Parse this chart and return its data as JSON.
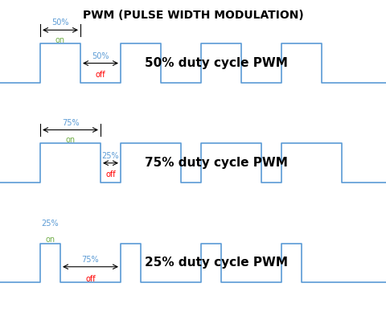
{
  "title": "PWM (PULSE WIDTH MODULATION)",
  "title_fontsize": 10,
  "title_fontweight": "bold",
  "bg_color": "#ffffff",
  "signal_color": "#5b9bd5",
  "text_color_on": "#70ad47",
  "text_color_off": "#ff0000",
  "text_color_pct": "#5b9bd5",
  "label_fontsize": 11,
  "label_fontweight": "bold",
  "subplots": [
    {
      "duty": 0.5,
      "label": "50% duty cycle PWM",
      "on_label": "50%",
      "off_label": "50%",
      "on_text": "on",
      "off_text": "off",
      "on_arrow_above": true,
      "off_arrow_mid": true
    },
    {
      "duty": 0.75,
      "label": "75% duty cycle PWM",
      "on_label": "75%",
      "off_label": "25%",
      "on_text": "on",
      "off_text": "off",
      "on_arrow_above": true,
      "off_arrow_mid": true
    },
    {
      "duty": 0.25,
      "label": "25% duty cycle PWM",
      "on_label": "25%",
      "off_label": "75%",
      "on_text": "on",
      "off_text": "off",
      "on_arrow_above": true,
      "off_arrow_mid": true
    }
  ],
  "period": 1.0,
  "num_periods": 4,
  "figsize": [
    4.8,
    3.88
  ],
  "dpi": 100
}
